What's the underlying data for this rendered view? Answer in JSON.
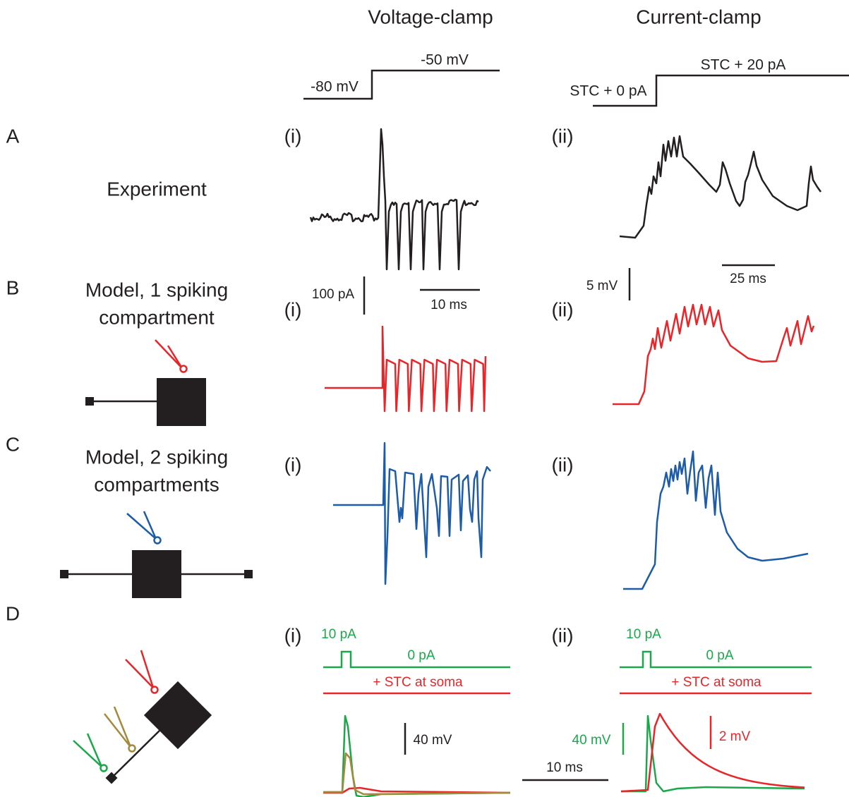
{
  "columns": [
    "Voltage-clamp",
    "Current-clamp"
  ],
  "protocol": {
    "voltage_clamp": {
      "hold": "-80 mV",
      "step": "-50 mV"
    },
    "current_clamp": {
      "hold": "STC + 0 pA",
      "step": "STC + 20 pA"
    }
  },
  "rows": [
    {
      "letter": "A",
      "label": [
        "Experiment"
      ],
      "panels": [
        "(i)",
        "(ii)"
      ]
    },
    {
      "letter": "B",
      "label": [
        "Model, 1 spiking",
        "compartment"
      ],
      "panels": [
        "(i)",
        "(ii)"
      ]
    },
    {
      "letter": "C",
      "label": [
        "Model, 2 spiking",
        "compartments"
      ],
      "panels": [
        "(i)",
        "(ii)"
      ]
    },
    {
      "letter": "D",
      "panels": [
        "(i)",
        "(ii)"
      ]
    }
  ],
  "scale_bars": {
    "current": "100 pA",
    "vc_time": "10 ms",
    "voltage": "5 mV",
    "cc_time": "25 ms"
  },
  "panel_d": {
    "voltage_clamp": {
      "pulse": "10 pA",
      "baseline": "0 pA",
      "stc": "+ STC at soma",
      "scale": "40 mV"
    },
    "current_clamp": {
      "pulse": "10 pA",
      "baseline": "0 pA",
      "stc": "+ STC at soma",
      "scale_green": "40 mV",
      "scale_red": "2 mV"
    },
    "time_scale": "10 ms"
  }
}
